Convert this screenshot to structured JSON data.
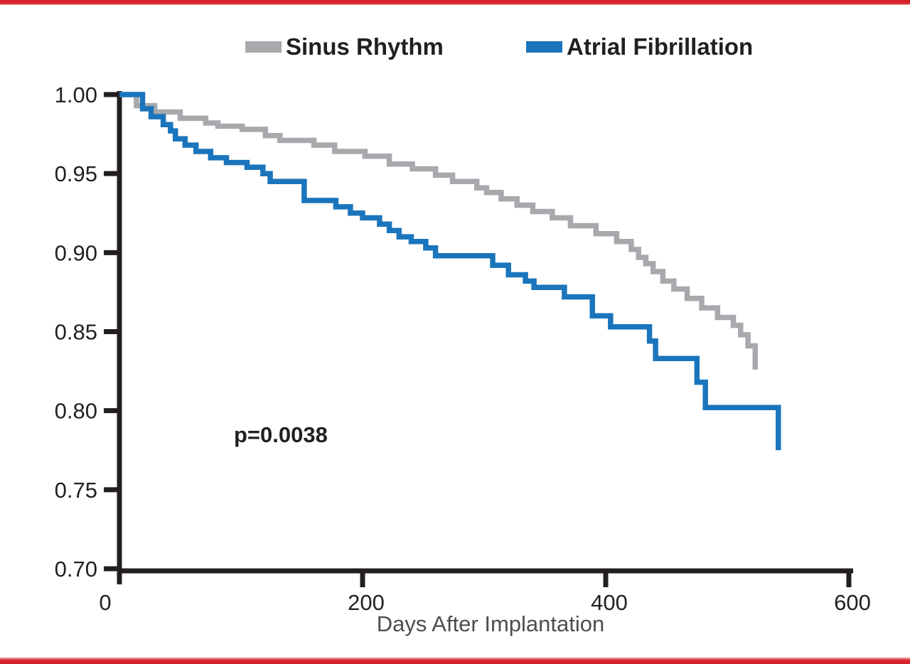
{
  "figure": {
    "background": "#FFFFFF",
    "border_color": "#D8232B"
  },
  "legend": {
    "position": "top",
    "items": [
      {
        "label": "Sinus Rhythm",
        "color": "#A7A9AC"
      },
      {
        "label": "Atrial Fibrillation",
        "color": "#1B75BC"
      }
    ]
  },
  "annotation": {
    "p_value": "p=0.0038"
  },
  "axis": {
    "color": "#231F20",
    "title_color": "#4D4D4F"
  },
  "chart_data": {
    "type": "line",
    "subtype": "kaplan_meier_step",
    "title": "",
    "xlabel": "Days After Implantation",
    "ylabel": "",
    "xlim": [
      0,
      600
    ],
    "ylim": [
      0.7,
      1.0
    ],
    "xtick_values": [
      0,
      200,
      400,
      600
    ],
    "xtick_labels": [
      "0",
      "200",
      "400",
      "600"
    ],
    "ytick_values": [
      1.0,
      0.95,
      0.9,
      0.85,
      0.8,
      0.75,
      0.7
    ],
    "ytick_labels": [
      "1.00",
      "0.95",
      "0.90",
      "0.85",
      "0.80",
      "0.75",
      "0.70"
    ],
    "grid": false,
    "legend_position": "top",
    "annotation": "p=0.0038",
    "series": [
      {
        "name": "Sinus Rhythm",
        "color": "#A7A9AC",
        "step": "after",
        "points": [
          [
            0,
            1.0
          ],
          [
            14,
            0.993
          ],
          [
            29,
            0.989
          ],
          [
            50,
            0.985
          ],
          [
            71,
            0.982
          ],
          [
            81,
            0.98
          ],
          [
            101,
            0.978
          ],
          [
            120,
            0.974
          ],
          [
            132,
            0.971
          ],
          [
            160,
            0.968
          ],
          [
            177,
            0.964
          ],
          [
            202,
            0.961
          ],
          [
            222,
            0.956
          ],
          [
            241,
            0.953
          ],
          [
            260,
            0.949
          ],
          [
            274,
            0.945
          ],
          [
            294,
            0.941
          ],
          [
            302,
            0.938
          ],
          [
            314,
            0.934
          ],
          [
            327,
            0.93
          ],
          [
            340,
            0.926
          ],
          [
            356,
            0.922
          ],
          [
            371,
            0.917
          ],
          [
            392,
            0.912
          ],
          [
            409,
            0.907
          ],
          [
            421,
            0.902
          ],
          [
            427,
            0.897
          ],
          [
            433,
            0.893
          ],
          [
            439,
            0.888
          ],
          [
            447,
            0.882
          ],
          [
            456,
            0.877
          ],
          [
            467,
            0.871
          ],
          [
            479,
            0.865
          ],
          [
            492,
            0.859
          ],
          [
            505,
            0.854
          ],
          [
            511,
            0.848
          ],
          [
            517,
            0.841
          ],
          [
            523,
            0.826
          ]
        ]
      },
      {
        "name": "Atrial Fibrillation",
        "color": "#1B75BC",
        "step": "after",
        "points": [
          [
            0,
            1.0
          ],
          [
            19,
            0.991
          ],
          [
            26,
            0.986
          ],
          [
            36,
            0.981
          ],
          [
            42,
            0.977
          ],
          [
            46,
            0.972
          ],
          [
            54,
            0.968
          ],
          [
            63,
            0.964
          ],
          [
            75,
            0.96
          ],
          [
            88,
            0.957
          ],
          [
            105,
            0.954
          ],
          [
            118,
            0.95
          ],
          [
            124,
            0.945
          ],
          [
            152,
            0.933
          ],
          [
            178,
            0.929
          ],
          [
            190,
            0.925
          ],
          [
            200,
            0.922
          ],
          [
            214,
            0.918
          ],
          [
            222,
            0.914
          ],
          [
            230,
            0.91
          ],
          [
            240,
            0.907
          ],
          [
            252,
            0.903
          ],
          [
            260,
            0.898
          ],
          [
            307,
            0.892
          ],
          [
            320,
            0.886
          ],
          [
            334,
            0.882
          ],
          [
            341,
            0.878
          ],
          [
            366,
            0.872
          ],
          [
            389,
            0.86
          ],
          [
            404,
            0.853
          ],
          [
            436,
            0.844
          ],
          [
            441,
            0.833
          ],
          [
            475,
            0.818
          ],
          [
            482,
            0.802
          ],
          [
            542,
            0.775
          ]
        ]
      }
    ]
  }
}
